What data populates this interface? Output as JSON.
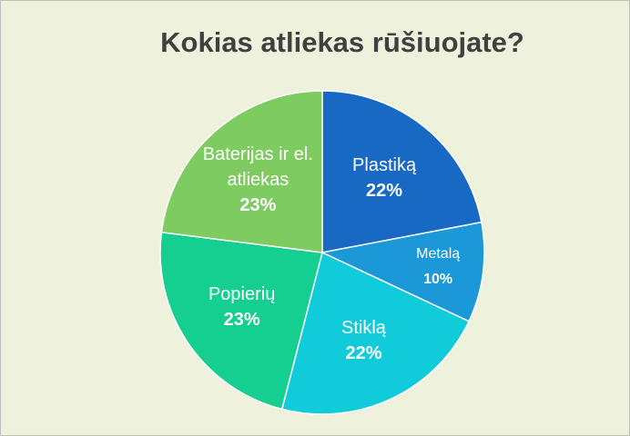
{
  "chart_data": {
    "type": "pie",
    "title": "Kokias atliekas rūšiuojate?",
    "categories": [
      "Plastiką",
      "Metalą",
      "Stiklą",
      "Popierių",
      "Baterijas ir el. atliekas"
    ],
    "values": [
      22,
      10,
      22,
      23,
      23
    ],
    "value_labels": [
      "22%",
      "10%",
      "22%",
      "23%",
      "23%"
    ],
    "colors": [
      "#1769c4",
      "#1b98d8",
      "#10cbd9",
      "#15cf91",
      "#7ecb60"
    ]
  }
}
